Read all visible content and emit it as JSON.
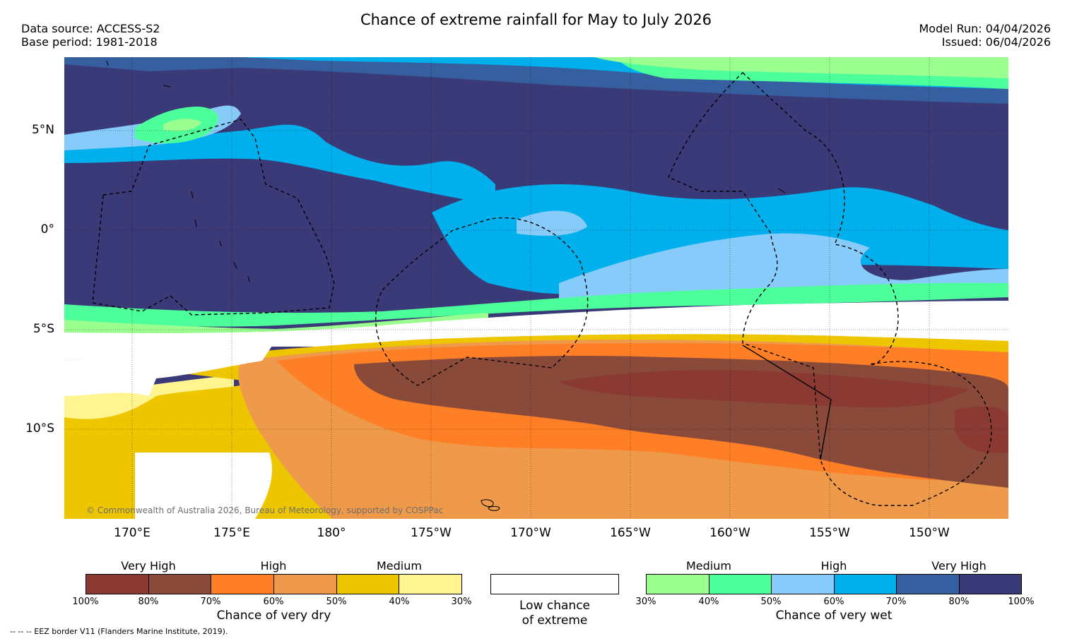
{
  "title": "Chance of extreme rainfall for May to July 2026",
  "meta_left": {
    "source": "Data source: ACCESS-S2",
    "base": "Base period: 1981-2018"
  },
  "meta_right": {
    "run": "Model Run: 04/04/2026",
    "issued": "Issued: 06/04/2026"
  },
  "map": {
    "lat_labels": [
      "5°N",
      "0°",
      "5°S",
      "10°S"
    ],
    "lon_labels": [
      "170°E",
      "175°E",
      "180°",
      "175°W",
      "170°W",
      "165°W",
      "160°W",
      "155°W",
      "150°W"
    ],
    "copyright": "© Commonwealth of Australia 2026, Bureau of Meteorology, supported by COSPPac"
  },
  "legend_dry": {
    "levels": [
      "Very High",
      "High",
      "Medium"
    ],
    "ticks": [
      "100%",
      "80%",
      "70%",
      "60%",
      "50%",
      "40%",
      "30%"
    ],
    "title": "Chance of very dry",
    "colors": [
      "#8b3a33",
      "#8a4a3a",
      "#ff7f27",
      "#ee9a4a",
      "#edc600",
      "#fff48f"
    ]
  },
  "legend_low": {
    "line1": "Low chance",
    "line2": "of extreme"
  },
  "legend_wet": {
    "levels": [
      "Medium",
      "High",
      "Very High"
    ],
    "ticks": [
      "30%",
      "40%",
      "50%",
      "60%",
      "70%",
      "80%",
      "100%"
    ],
    "title": "Chance of very wet",
    "colors": [
      "#9aff8e",
      "#4cff9b",
      "#87cbfb",
      "#00b0ec",
      "#355f9e",
      "#3a3a78"
    ]
  },
  "eez_note": "--  --  -- EEZ border V11 (Flanders Marine Institute, 2019)."
}
